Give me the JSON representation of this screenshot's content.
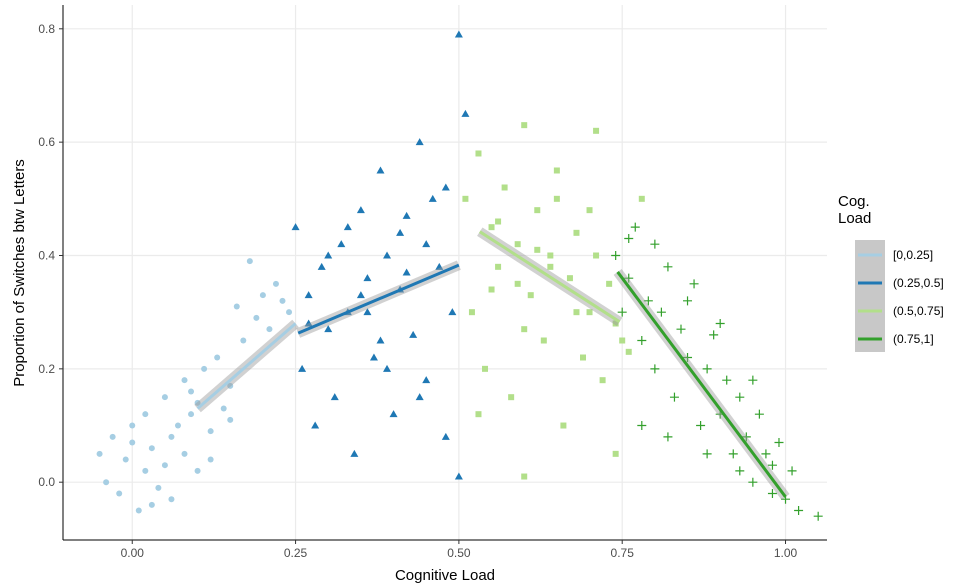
{
  "chart_data": {
    "type": "scatter",
    "x_label": "Cognitive Load",
    "y_label": "Proportion of Switches btw Letters",
    "legend_title": "Cog. Load",
    "legend_position": "right",
    "grid": true,
    "xlim": [
      -0.106,
      1.0635
    ],
    "ylim": [
      -0.102,
      0.842
    ],
    "xticks": [
      {
        "value": 0,
        "label": "0.00"
      },
      0.25,
      {
        "value": 0.5,
        "label": "0.50"
      },
      0.75,
      {
        "value": 1,
        "label": "1.00"
      }
    ],
    "yticks": [
      {
        "value": 0,
        "label": "0.0"
      },
      0.2,
      0.4,
      0.6,
      0.8
    ],
    "series": [
      {
        "name": "[0,0.25]",
        "color": "#a6cee3",
        "marker": "circle",
        "x": [
          -0.05,
          -0.04,
          -0.03,
          -0.02,
          -0.01,
          0.0,
          0.01,
          0.02,
          0.02,
          0.03,
          0.04,
          0.05,
          0.05,
          0.06,
          0.07,
          0.08,
          0.08,
          0.09,
          0.1,
          0.1,
          0.11,
          0.12,
          0.13,
          0.14,
          0.15,
          0.16,
          0.17,
          0.18,
          0.19,
          0.2,
          0.21,
          0.22,
          0.23,
          0.24,
          0.03,
          0.06,
          0.09,
          0.0,
          0.12,
          0.15
        ],
        "values": [
          0.05,
          0.0,
          0.08,
          -0.02,
          0.04,
          0.1,
          -0.05,
          0.02,
          0.12,
          0.06,
          -0.01,
          0.03,
          0.15,
          0.08,
          0.1,
          0.05,
          0.18,
          0.12,
          0.02,
          0.14,
          0.2,
          0.09,
          0.22,
          0.13,
          0.17,
          0.31,
          0.25,
          0.39,
          0.29,
          0.33,
          0.27,
          0.35,
          0.32,
          0.3,
          -0.04,
          -0.03,
          0.16,
          0.07,
          0.04,
          0.11
        ],
        "fit_x": [
          0.1,
          0.25
        ],
        "fit_y": [
          0.13,
          0.28
        ]
      },
      {
        "name": "(0.25,0.5]",
        "color": "#1f78b4",
        "marker": "triangle",
        "x": [
          0.25,
          0.26,
          0.27,
          0.28,
          0.29,
          0.3,
          0.31,
          0.32,
          0.33,
          0.34,
          0.35,
          0.36,
          0.37,
          0.38,
          0.39,
          0.4,
          0.41,
          0.42,
          0.43,
          0.44,
          0.45,
          0.46,
          0.47,
          0.48,
          0.49,
          0.5,
          0.27,
          0.3,
          0.33,
          0.36,
          0.39,
          0.42,
          0.45,
          0.48,
          0.35,
          0.38,
          0.41,
          0.44,
          0.5,
          0.51
        ],
        "values": [
          0.45,
          0.2,
          0.33,
          0.1,
          0.38,
          0.27,
          0.15,
          0.42,
          0.3,
          0.05,
          0.48,
          0.36,
          0.22,
          0.55,
          0.4,
          0.12,
          0.34,
          0.47,
          0.26,
          0.6,
          0.18,
          0.5,
          0.38,
          0.08,
          0.3,
          0.79,
          0.28,
          0.4,
          0.45,
          0.3,
          0.2,
          0.37,
          0.42,
          0.52,
          0.33,
          0.25,
          0.44,
          0.15,
          0.01,
          0.65
        ],
        "fit_x": [
          0.254,
          0.5
        ],
        "fit_y": [
          0.263,
          0.383
        ]
      },
      {
        "name": "(0.5,0.75]",
        "color": "#b2df8a",
        "marker": "square",
        "x": [
          0.51,
          0.52,
          0.53,
          0.54,
          0.55,
          0.56,
          0.57,
          0.58,
          0.59,
          0.6,
          0.61,
          0.62,
          0.63,
          0.64,
          0.65,
          0.66,
          0.67,
          0.68,
          0.69,
          0.7,
          0.71,
          0.72,
          0.73,
          0.74,
          0.75,
          0.53,
          0.56,
          0.59,
          0.62,
          0.65,
          0.68,
          0.71,
          0.74,
          0.55,
          0.6,
          0.64,
          0.7,
          0.76,
          0.78,
          0.6
        ],
        "values": [
          0.5,
          0.3,
          0.58,
          0.2,
          0.45,
          0.38,
          0.52,
          0.15,
          0.42,
          0.63,
          0.33,
          0.48,
          0.25,
          0.4,
          0.55,
          0.1,
          0.36,
          0.44,
          0.22,
          0.3,
          0.4,
          0.18,
          0.35,
          0.28,
          0.25,
          0.12,
          0.46,
          0.35,
          0.41,
          0.5,
          0.3,
          0.62,
          0.05,
          0.34,
          0.27,
          0.38,
          0.48,
          0.23,
          0.5,
          0.01
        ],
        "fit_x": [
          0.532,
          0.746
        ],
        "fit_y": [
          0.442,
          0.283
        ]
      },
      {
        "name": "(0.75,1]",
        "color": "#33a02c",
        "marker": "plus",
        "x": [
          0.74,
          0.75,
          0.76,
          0.77,
          0.78,
          0.79,
          0.8,
          0.81,
          0.82,
          0.83,
          0.84,
          0.85,
          0.86,
          0.87,
          0.88,
          0.89,
          0.9,
          0.91,
          0.92,
          0.93,
          0.94,
          0.95,
          0.96,
          0.97,
          0.98,
          0.99,
          1.0,
          1.01,
          1.02,
          1.05,
          0.8,
          0.85,
          0.9,
          0.95,
          0.78,
          0.82,
          0.88,
          0.93,
          0.98,
          0.76
        ],
        "values": [
          0.4,
          0.3,
          0.36,
          0.45,
          0.25,
          0.32,
          0.2,
          0.3,
          0.38,
          0.15,
          0.27,
          0.22,
          0.35,
          0.1,
          0.2,
          0.26,
          0.12,
          0.18,
          0.05,
          0.15,
          0.08,
          0.0,
          0.12,
          0.05,
          -0.02,
          0.07,
          -0.03,
          0.02,
          -0.05,
          -0.06,
          0.42,
          0.32,
          0.28,
          0.18,
          0.1,
          0.08,
          0.05,
          0.02,
          0.03,
          0.43
        ],
        "fit_x": [
          0.743,
          1.0
        ],
        "fit_y": [
          0.371,
          -0.026
        ]
      }
    ]
  }
}
